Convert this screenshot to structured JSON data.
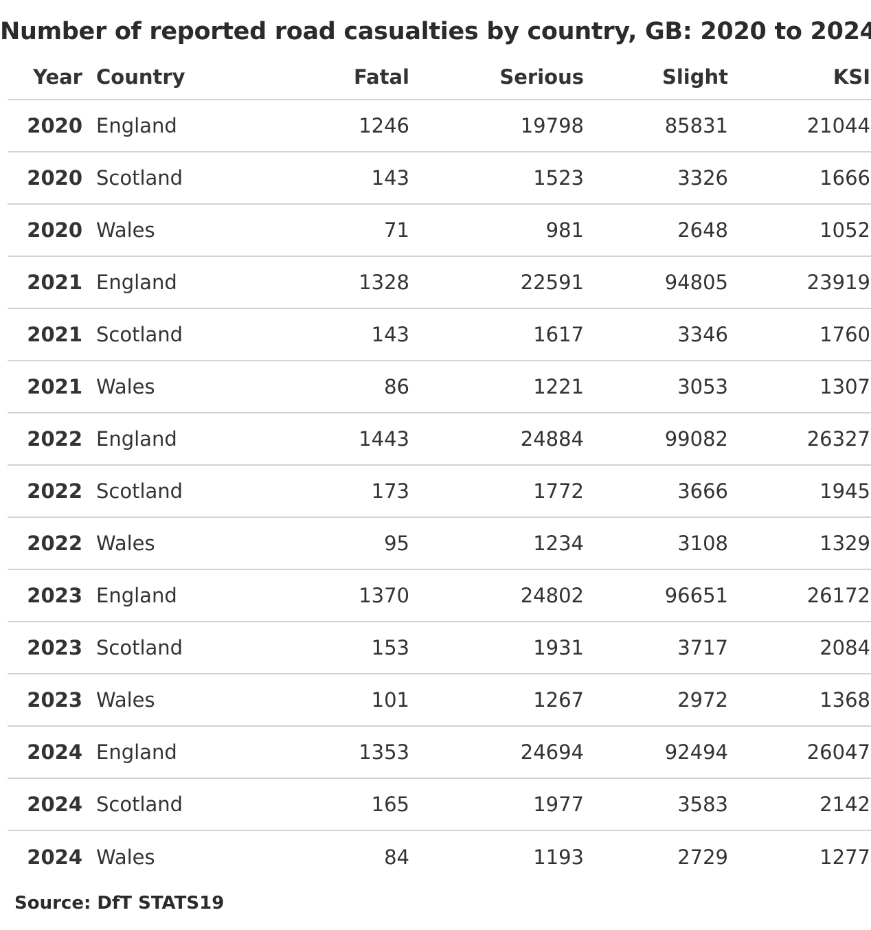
{
  "title": "Number of reported road casualties by country, GB: 2020 to 2024",
  "columns": {
    "year": "Year",
    "country": "Country",
    "fatal": "Fatal",
    "serious": "Serious",
    "slight": "Slight",
    "ksi": "KSI"
  },
  "rows": [
    {
      "year": "2020",
      "country": "England",
      "fatal": "1246",
      "serious": "19798",
      "slight": "85831",
      "ksi": "21044"
    },
    {
      "year": "2020",
      "country": "Scotland",
      "fatal": "143",
      "serious": "1523",
      "slight": "3326",
      "ksi": "1666"
    },
    {
      "year": "2020",
      "country": "Wales",
      "fatal": "71",
      "serious": "981",
      "slight": "2648",
      "ksi": "1052"
    },
    {
      "year": "2021",
      "country": "England",
      "fatal": "1328",
      "serious": "22591",
      "slight": "94805",
      "ksi": "23919"
    },
    {
      "year": "2021",
      "country": "Scotland",
      "fatal": "143",
      "serious": "1617",
      "slight": "3346",
      "ksi": "1760"
    },
    {
      "year": "2021",
      "country": "Wales",
      "fatal": "86",
      "serious": "1221",
      "slight": "3053",
      "ksi": "1307"
    },
    {
      "year": "2022",
      "country": "England",
      "fatal": "1443",
      "serious": "24884",
      "slight": "99082",
      "ksi": "26327"
    },
    {
      "year": "2022",
      "country": "Scotland",
      "fatal": "173",
      "serious": "1772",
      "slight": "3666",
      "ksi": "1945"
    },
    {
      "year": "2022",
      "country": "Wales",
      "fatal": "95",
      "serious": "1234",
      "slight": "3108",
      "ksi": "1329"
    },
    {
      "year": "2023",
      "country": "England",
      "fatal": "1370",
      "serious": "24802",
      "slight": "96651",
      "ksi": "26172"
    },
    {
      "year": "2023",
      "country": "Scotland",
      "fatal": "153",
      "serious": "1931",
      "slight": "3717",
      "ksi": "2084"
    },
    {
      "year": "2023",
      "country": "Wales",
      "fatal": "101",
      "serious": "1267",
      "slight": "2972",
      "ksi": "1368"
    },
    {
      "year": "2024",
      "country": "England",
      "fatal": "1353",
      "serious": "24694",
      "slight": "92494",
      "ksi": "26047"
    },
    {
      "year": "2024",
      "country": "Scotland",
      "fatal": "165",
      "serious": "1977",
      "slight": "3583",
      "ksi": "2142"
    },
    {
      "year": "2024",
      "country": "Wales",
      "fatal": "84",
      "serious": "1193",
      "slight": "2729",
      "ksi": "1277"
    }
  ],
  "source": "Source: DfT STATS19"
}
